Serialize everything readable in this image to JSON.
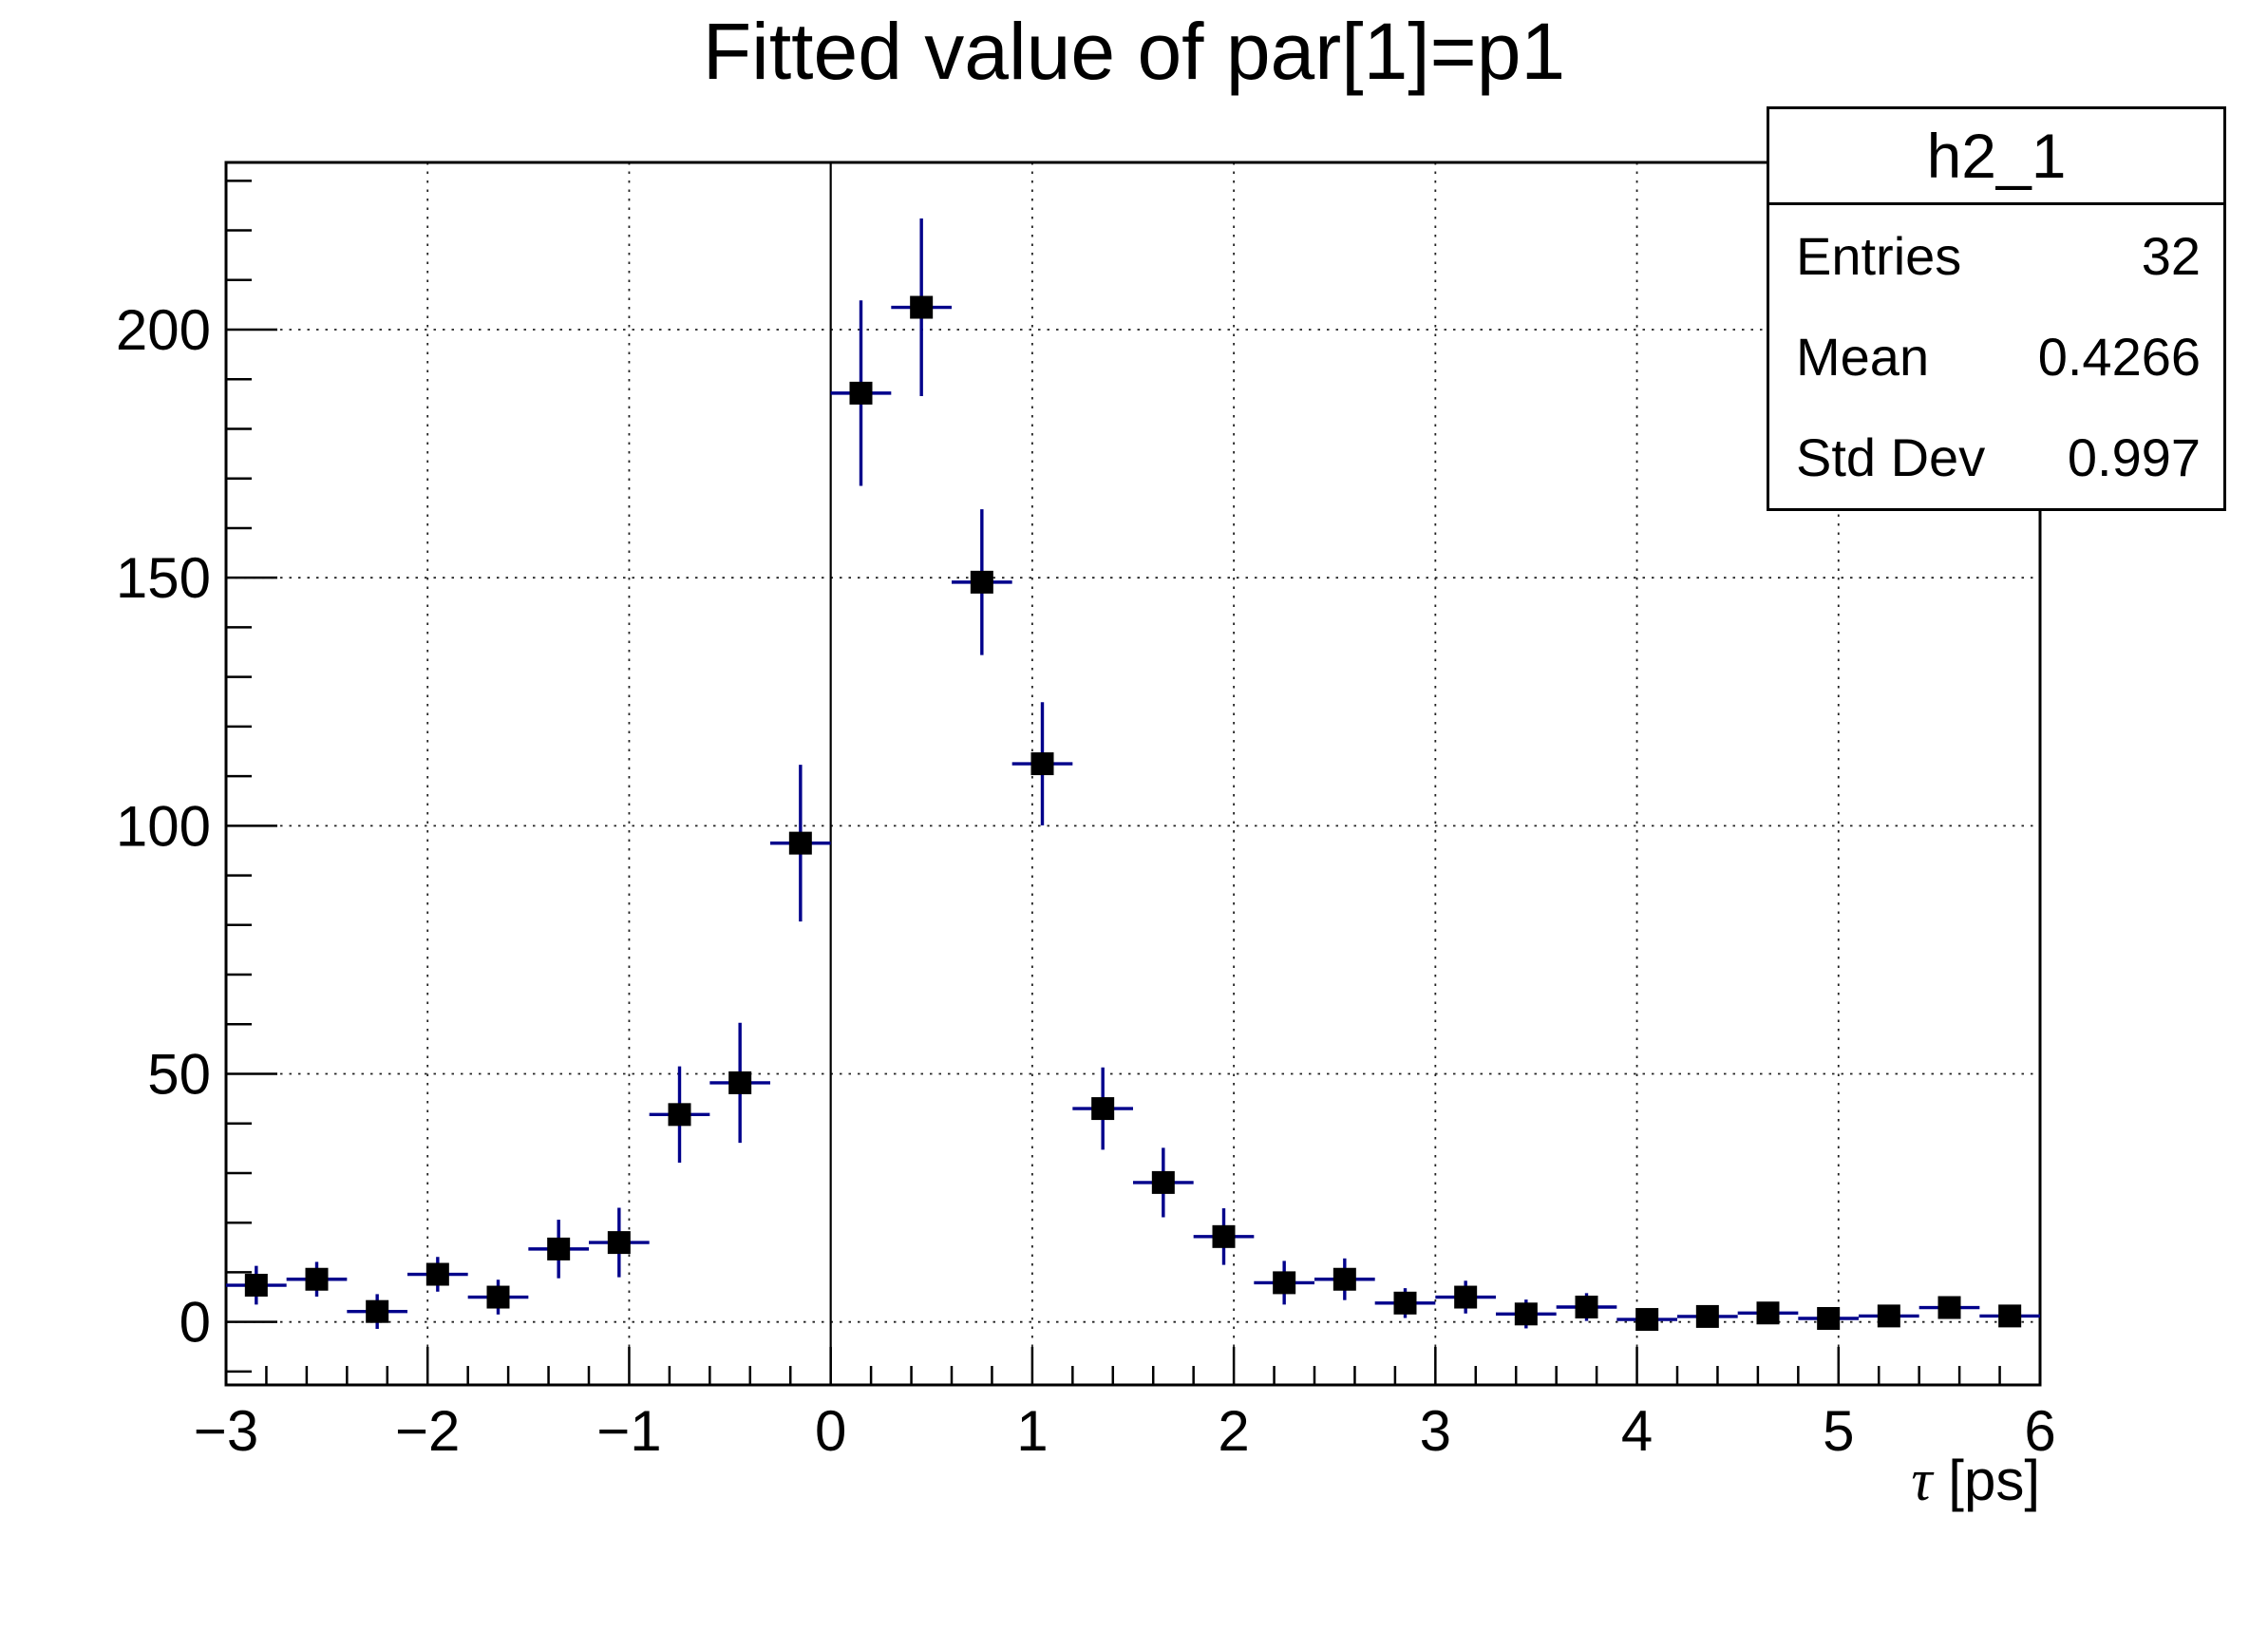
{
  "chart_data": {
    "type": "scatter",
    "title": "Fitted value of par[1]=p1",
    "xlabel": "τ [ps]",
    "xlabel_symbol": "τ",
    "xlabel_rest": " [ps]",
    "ylabel": "",
    "xlim": [
      -3,
      6
    ],
    "ylim": [
      -12.7,
      233.7
    ],
    "grid": true,
    "legend_position": "none",
    "x_major_ticks": [
      -3,
      -2,
      -1,
      0,
      1,
      2,
      3,
      4,
      5,
      6
    ],
    "x_tick_labels": [
      "−3",
      "−2",
      "−1",
      "0",
      "1",
      "2",
      "3",
      "4",
      "5",
      "6"
    ],
    "x_minor_step": 0.2,
    "y_major_ticks": [
      0,
      50,
      100,
      150,
      200
    ],
    "y_tick_labels": [
      "0",
      "50",
      "100",
      "150",
      "200"
    ],
    "y_minor_step": 10,
    "zero_line_x": 0,
    "bin_half_width": 0.15,
    "series": [
      {
        "name": "h2_1",
        "marker": "filled-square",
        "marker_color": "#000000",
        "error_color": "#00008b",
        "x": [
          -2.85,
          -2.55,
          -2.25,
          -1.95,
          -1.65,
          -1.35,
          -1.05,
          -0.75,
          -0.45,
          -0.15,
          0.15,
          0.45,
          0.75,
          1.05,
          1.35,
          1.65,
          1.95,
          2.25,
          2.55,
          2.85,
          3.15,
          3.45,
          3.75,
          4.05,
          4.35,
          4.65,
          4.95,
          5.25,
          5.55,
          5.85
        ],
        "y": [
          7.4,
          8.6,
          2.1,
          9.6,
          5.0,
          14.7,
          16.0,
          41.8,
          48.2,
          96.5,
          187.2,
          204.5,
          149.1,
          112.5,
          43.0,
          28.1,
          17.2,
          7.9,
          8.6,
          3.8,
          5.0,
          1.6,
          3.0,
          0.5,
          1.1,
          1.8,
          0.7,
          1.2,
          2.9,
          1.2
        ],
        "yerr": [
          3.9,
          3.5,
          3.5,
          3.5,
          3.5,
          5.9,
          7.0,
          9.7,
          12.1,
          15.8,
          18.7,
          17.9,
          14.7,
          12.4,
          8.3,
          7.0,
          5.7,
          4.4,
          4.2,
          3.0,
          3.3,
          2.9,
          2.8,
          2.0,
          2.0,
          2.2,
          2.0,
          2.0,
          2.0,
          2.0
        ]
      }
    ],
    "stats_box": {
      "title": "h2_1",
      "rows": [
        {
          "label": "Entries",
          "value": "32"
        },
        {
          "label": "Mean",
          "value": "0.4266"
        },
        {
          "label": "Std Dev",
          "value": "0.997"
        }
      ]
    }
  },
  "colors": {
    "background": "#ffffff",
    "frame": "#000000",
    "grid": "#222222",
    "error_bar": "#00008b",
    "marker": "#000000"
  }
}
